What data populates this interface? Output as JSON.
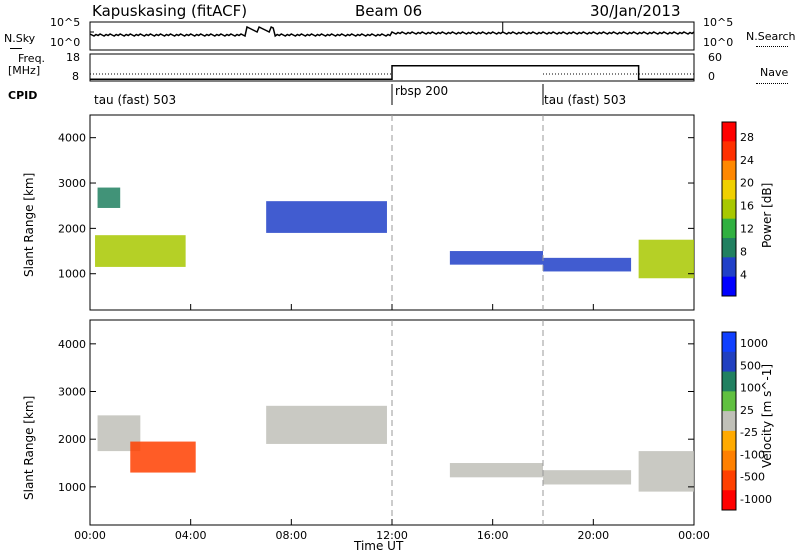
{
  "header": {
    "station": "Kapuskasing (fitACF)",
    "beam": "Beam 06",
    "date": "30/Jan/2013"
  },
  "top_panels": {
    "nsky_label": "N.Sky",
    "nsearch_label": "N.Search",
    "count_ticks": [
      "10^5",
      "10^0"
    ],
    "freq_label": "Freq.",
    "freq_unit": "[MHz]",
    "freq_ticks": [
      "18",
      "8"
    ],
    "nave_label": "Nave",
    "nave_ticks": [
      "60",
      "0"
    ],
    "cpid_label": "CPID",
    "cpid_segments": [
      "tau (fast) 503",
      "rbsp 200",
      "tau (fast) 503"
    ]
  },
  "colors": {
    "power_scale": [
      "#0000ff",
      "#2040c8",
      "#208060",
      "#30b040",
      "#a8c800",
      "#f0d000",
      "#ff8800",
      "#ff3000",
      "#ff0000"
    ],
    "velocity_scale": [
      "#ff0000",
      "#ff4000",
      "#ff8000",
      "#ffaa00",
      "#c0c0b8",
      "#60c040",
      "#208060",
      "#2040c0",
      "#1040ff"
    ]
  },
  "chart_data": [
    {
      "type": "heatmap",
      "title": "",
      "xlabel": "",
      "ylabel": "Slant Range [km]",
      "xlim": [
        "00:00",
        "24:00"
      ],
      "ylim": [
        200,
        4500
      ],
      "x_ticks": [
        "00:00",
        "04:00",
        "08:00",
        "12:00",
        "16:00",
        "20:00",
        "00:00"
      ],
      "y_ticks": [
        "1000",
        "2000",
        "3000",
        "4000"
      ],
      "colorbar_label": "Power [dB]",
      "colorbar_ticks": [
        "28",
        "24",
        "20",
        "16",
        "12",
        "8",
        "4"
      ],
      "colorbar_range": [
        0,
        30
      ],
      "regions": [
        {
          "t0": 0.2,
          "t1": 3.8,
          "r0": 1150,
          "r1": 1850,
          "value": 14
        },
        {
          "t0": 0.3,
          "t1": 1.2,
          "r0": 2450,
          "r1": 2900,
          "value": 8
        },
        {
          "t0": 7.0,
          "t1": 11.8,
          "r0": 1900,
          "r1": 2600,
          "value": 6
        },
        {
          "t0": 14.3,
          "t1": 18.0,
          "r0": 1200,
          "r1": 1500,
          "value": 4
        },
        {
          "t0": 18.0,
          "t1": 21.5,
          "r0": 1050,
          "r1": 1350,
          "value": 4
        },
        {
          "t0": 21.8,
          "t1": 24.0,
          "r0": 900,
          "r1": 1750,
          "value": 16
        }
      ]
    },
    {
      "type": "heatmap",
      "title": "",
      "xlabel": "Time UT",
      "ylabel": "Slant Range [km]",
      "xlim": [
        "00:00",
        "24:00"
      ],
      "ylim": [
        200,
        4500
      ],
      "x_ticks": [
        "00:00",
        "04:00",
        "08:00",
        "12:00",
        "16:00",
        "20:00",
        "00:00"
      ],
      "y_ticks": [
        "1000",
        "2000",
        "3000",
        "4000"
      ],
      "colorbar_label": "Velocity [m s^-1]",
      "colorbar_ticks": [
        "1000",
        "500",
        "100",
        "25",
        "-25",
        "-100",
        "-500",
        "-1000"
      ],
      "colorbar_range": [
        -1000,
        1000
      ],
      "regions": [
        {
          "t0": 0.3,
          "t1": 2.0,
          "r0": 1750,
          "r1": 2500,
          "value": 0
        },
        {
          "t0": 1.6,
          "t1": 4.2,
          "r0": 1300,
          "r1": 1950,
          "value": -120
        },
        {
          "t0": 7.0,
          "t1": 11.8,
          "r0": 1900,
          "r1": 2700,
          "value": 0
        },
        {
          "t0": 14.3,
          "t1": 18.0,
          "r0": 1200,
          "r1": 1500,
          "value": 0
        },
        {
          "t0": 18.0,
          "t1": 21.5,
          "r0": 1050,
          "r1": 1350,
          "value": 0
        },
        {
          "t0": 21.8,
          "t1": 24.0,
          "r0": 900,
          "r1": 1750,
          "value": 0
        }
      ]
    }
  ]
}
